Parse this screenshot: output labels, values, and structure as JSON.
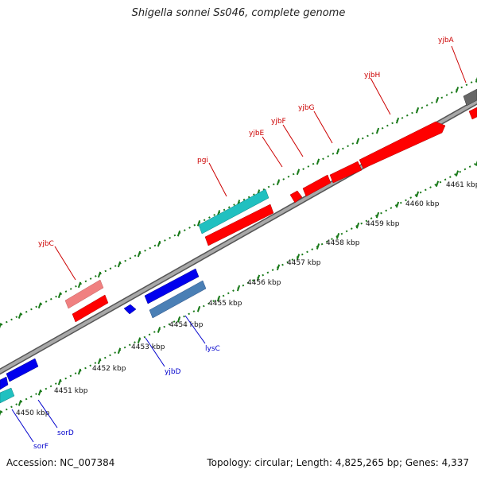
{
  "title": "Shigella sonnei Ss046, complete genome",
  "footer": {
    "accession": "Accession: NC_007384",
    "summary": "Topology: circular; Length: 4,825,265 bp; Genes: 4,337"
  },
  "colors": {
    "forward_gene": "#ff0000",
    "forward_gene_light": "#f08080",
    "reverse_gene": "#0000ee",
    "reverse_gene_light": "#4a7fb5",
    "rna": "#20c0c0",
    "backbone": "#909090",
    "tick": "#1a7a1a",
    "forward_label": "#cc0000",
    "reverse_label": "#0000cc",
    "grey_feature": "#666666"
  },
  "scale_labels": [
    "4450 kbp",
    "4451 kbp",
    "4452 kbp",
    "4453 kbp",
    "4454 kbp",
    "4455 kbp",
    "4456 kbp",
    "4457 kbp",
    "4458 kbp",
    "4459 kbp",
    "4460 kbp",
    "4461 kbp"
  ],
  "forward_labels": [
    "yjbC",
    "pgi",
    "yjbE",
    "yjbF",
    "yjbG",
    "yjbH",
    "yjbA"
  ],
  "reverse_labels": [
    "sorF",
    "sorD",
    "yjbD",
    "lysC"
  ]
}
